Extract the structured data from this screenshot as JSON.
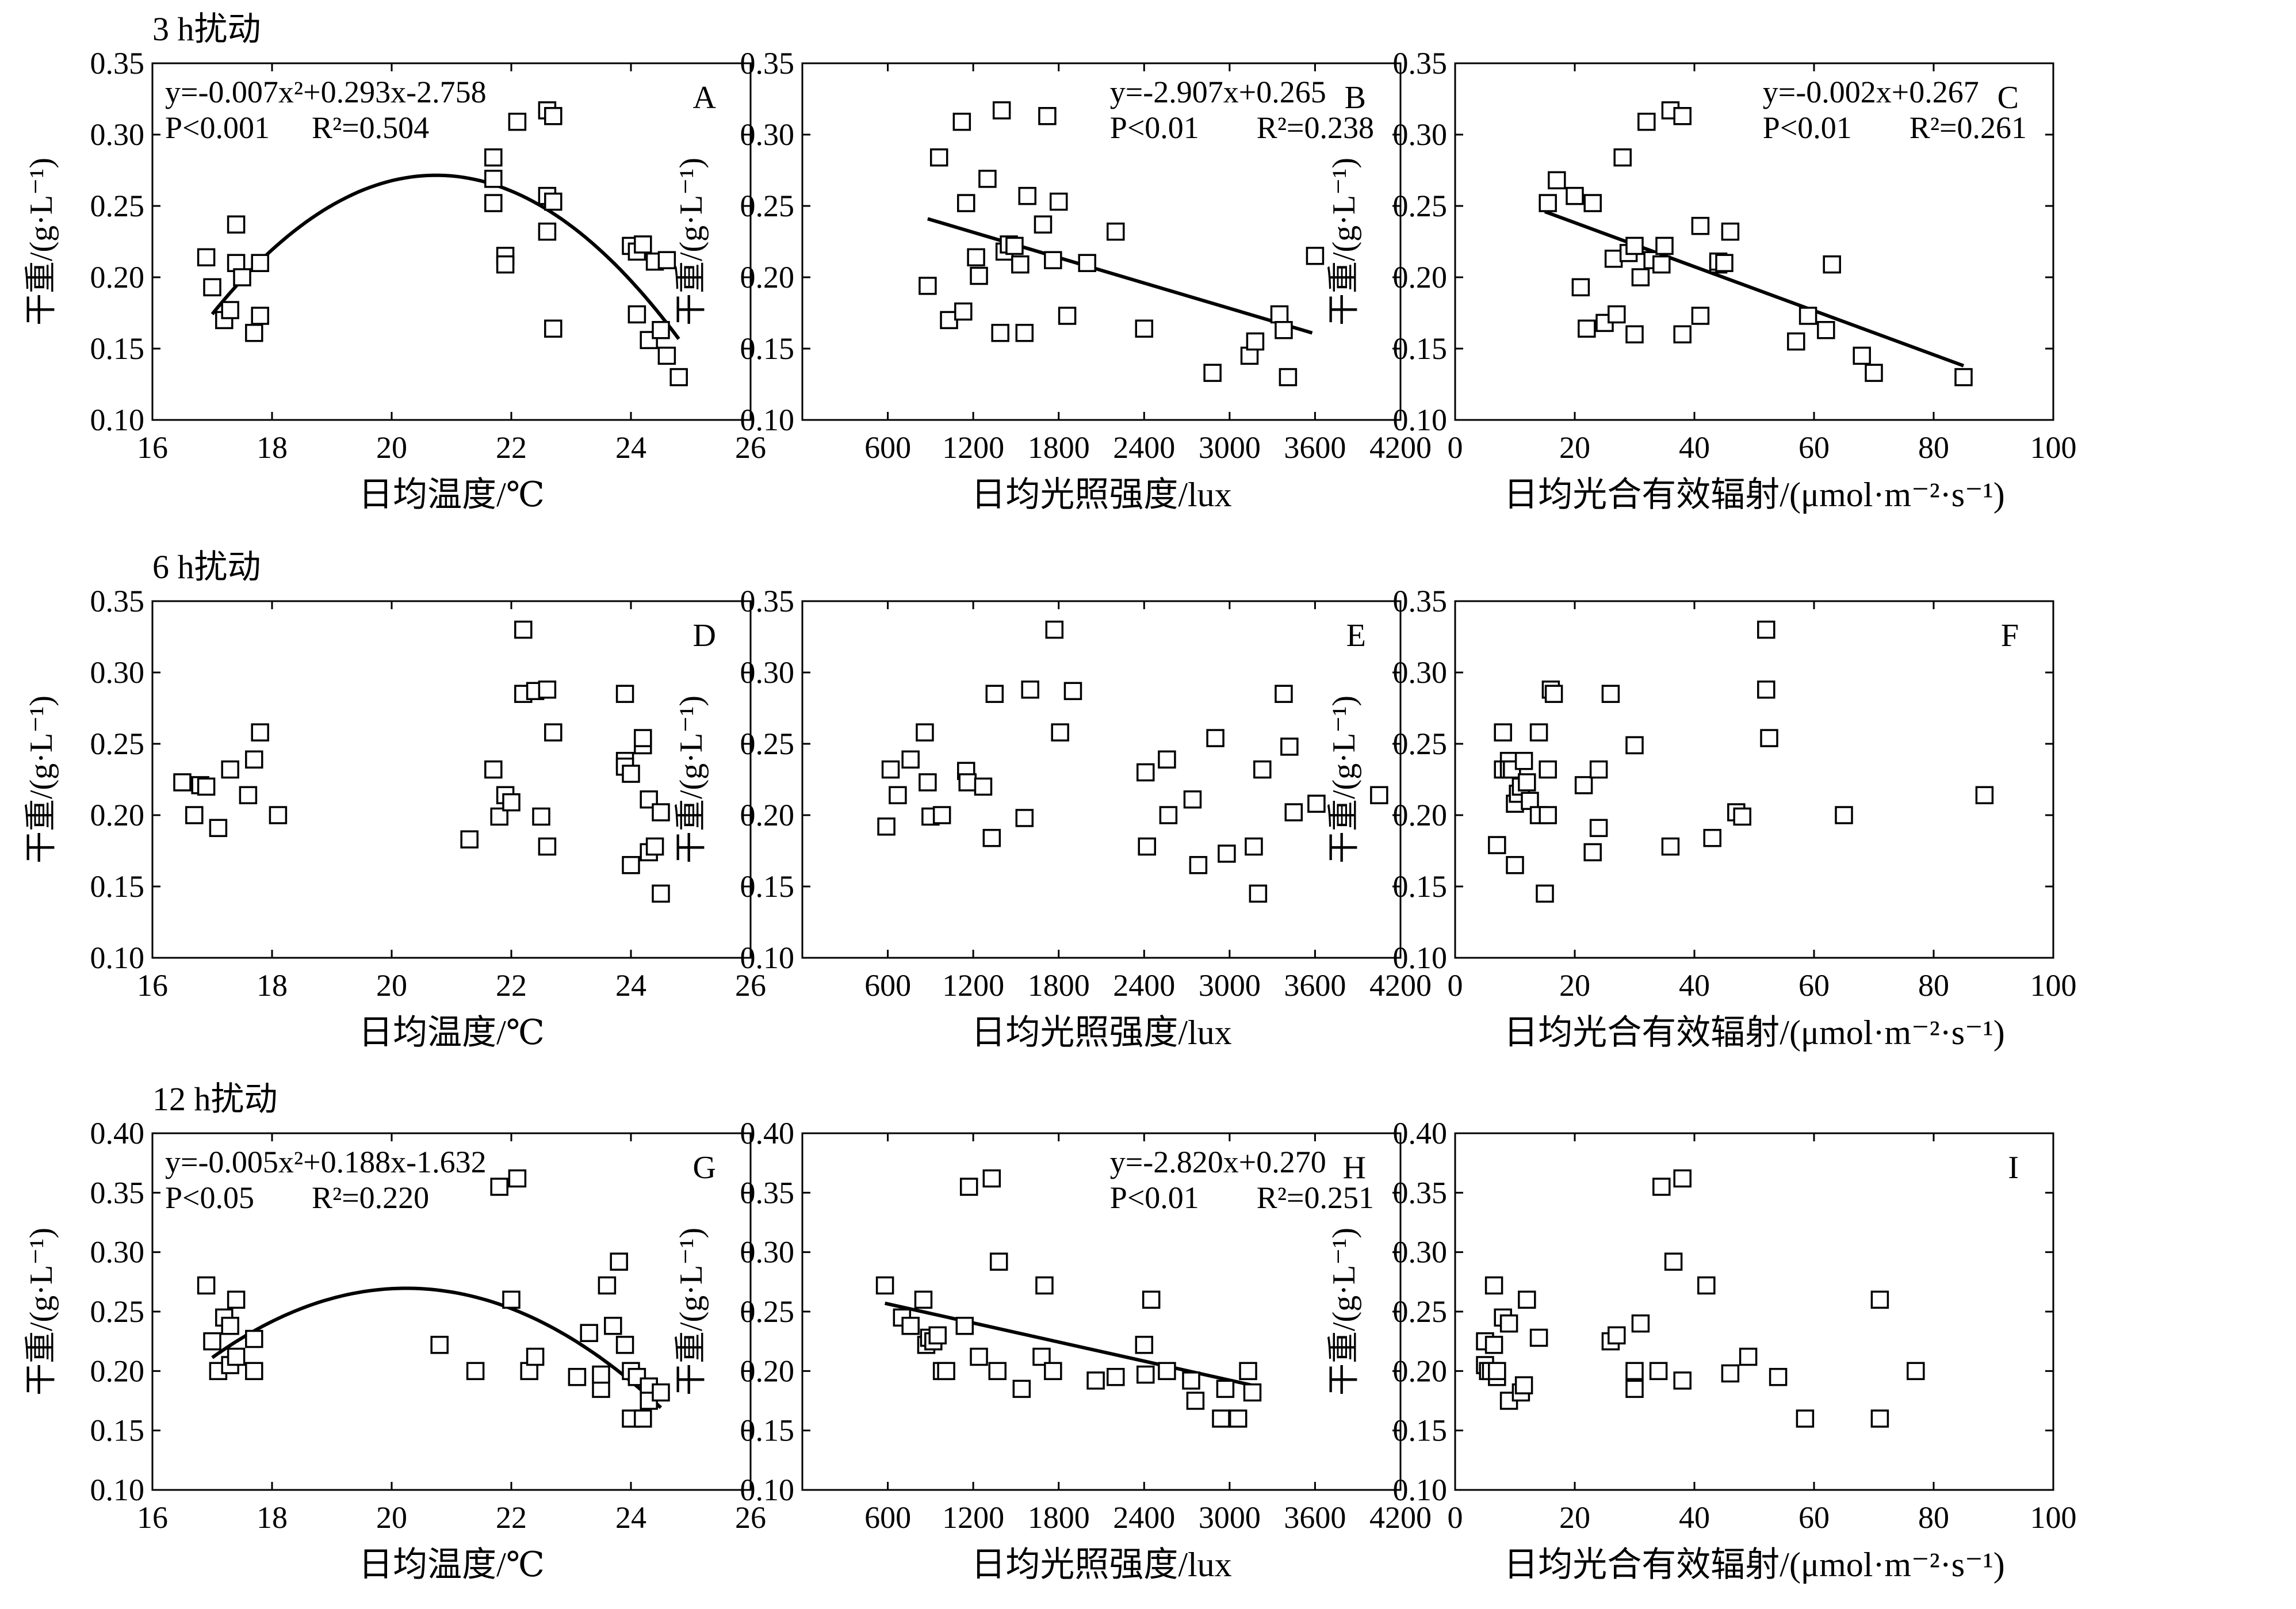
{
  "row_titles": [
    "3 h扰动",
    "6 h扰动",
    "12 h扰动"
  ],
  "chart_data": [
    {
      "id": "A",
      "type": "scatter",
      "xlabel": "日均温度/℃",
      "ylabel": "干重/(g·L⁻¹)",
      "xlim": [
        16,
        26
      ],
      "ylim": [
        0.1,
        0.35
      ],
      "xticks": [
        16,
        18,
        20,
        22,
        24,
        26
      ],
      "yticks": [
        0.1,
        0.15,
        0.2,
        0.25,
        0.3,
        0.35
      ],
      "annotation": [
        "y=-0.007x²+0.293x-2.758",
        "P<0.001",
        "R²=0.504"
      ],
      "fit": {
        "kind": "poly2",
        "coef": [
          -0.00696,
          0.2887,
          -2.7223
        ],
        "range": [
          17.0,
          24.8
        ]
      },
      "x": [
        16.9,
        17.0,
        17.2,
        17.3,
        17.4,
        17.4,
        17.5,
        17.7,
        17.8,
        17.8,
        21.7,
        21.7,
        21.7,
        21.9,
        21.9,
        22.1,
        22.6,
        22.6,
        22.6,
        22.7,
        22.7,
        22.7,
        24.0,
        24.1,
        24.1,
        24.2,
        24.3,
        24.4,
        24.5,
        24.6,
        24.6,
        24.8
      ],
      "y": [
        0.214,
        0.193,
        0.17,
        0.177,
        0.21,
        0.237,
        0.2,
        0.161,
        0.21,
        0.173,
        0.284,
        0.269,
        0.252,
        0.215,
        0.209,
        0.309,
        0.317,
        0.257,
        0.232,
        0.313,
        0.253,
        0.164,
        0.222,
        0.218,
        0.174,
        0.223,
        0.156,
        0.211,
        0.163,
        0.212,
        0.145,
        0.13
      ]
    },
    {
      "id": "B",
      "type": "scatter",
      "xlabel": "日均光照强度/lux",
      "ylabel": "干重/(g·L⁻¹)",
      "xlim": [
        0,
        4200
      ],
      "ylim": [
        0.1,
        0.35
      ],
      "xticks": [
        600,
        1200,
        1800,
        2400,
        3000,
        3600,
        4200
      ],
      "yticks": [
        0.1,
        0.15,
        0.2,
        0.25,
        0.3,
        0.35
      ],
      "annotation": [
        "y=-2.907x+0.265",
        "P<0.01",
        "R²=0.238"
      ],
      "fit": {
        "kind": "line",
        "points": [
          [
            880,
            0.241
          ],
          [
            3580,
            0.161
          ]
        ]
      },
      "x": [
        880,
        960,
        1030,
        1120,
        1130,
        1150,
        1220,
        1240,
        1300,
        1390,
        1400,
        1420,
        1450,
        1490,
        1530,
        1560,
        1580,
        1690,
        1720,
        1760,
        1800,
        1860,
        2000,
        2200,
        2400,
        2880,
        3140,
        3180,
        3350,
        3380,
        3410,
        3600
      ],
      "y": [
        0.194,
        0.284,
        0.17,
        0.309,
        0.176,
        0.252,
        0.214,
        0.201,
        0.269,
        0.161,
        0.317,
        0.218,
        0.223,
        0.222,
        0.209,
        0.161,
        0.257,
        0.237,
        0.313,
        0.212,
        0.253,
        0.173,
        0.21,
        0.232,
        0.164,
        0.133,
        0.145,
        0.155,
        0.174,
        0.163,
        0.13,
        0.215
      ]
    },
    {
      "id": "C",
      "type": "scatter",
      "xlabel": "日均光合有效辐射/(μmol·m⁻²·s⁻¹)",
      "ylabel": "干重/(g·L⁻¹)",
      "xlim": [
        0,
        100
      ],
      "ylim": [
        0.1,
        0.35
      ],
      "xticks": [
        0,
        20,
        40,
        60,
        80,
        100
      ],
      "yticks": [
        0.1,
        0.15,
        0.2,
        0.25,
        0.3,
        0.35
      ],
      "annotation": [
        "y=-0.002x+0.267",
        "P<0.01",
        "R²=0.261"
      ],
      "fit": {
        "kind": "line",
        "points": [
          [
            15,
            0.246
          ],
          [
            85,
            0.138
          ]
        ]
      },
      "x": [
        15.5,
        17,
        20,
        21,
        22,
        23,
        25,
        26.5,
        27,
        28,
        29,
        30,
        30,
        31,
        32,
        33,
        34.5,
        35,
        36,
        38,
        38,
        41,
        41,
        44,
        44,
        45,
        46,
        57,
        59,
        62,
        63,
        68,
        70,
        85
      ],
      "y": [
        0.252,
        0.268,
        0.257,
        0.193,
        0.164,
        0.252,
        0.168,
        0.213,
        0.174,
        0.284,
        0.217,
        0.222,
        0.16,
        0.2,
        0.309,
        0.212,
        0.209,
        0.222,
        0.317,
        0.16,
        0.313,
        0.236,
        0.173,
        0.209,
        0.211,
        0.21,
        0.232,
        0.155,
        0.173,
        0.163,
        0.209,
        0.145,
        0.133,
        0.13
      ]
    },
    {
      "id": "D",
      "type": "scatter",
      "xlabel": "日均温度/℃",
      "ylabel": "干重/(g·L⁻¹)",
      "xlim": [
        16,
        26
      ],
      "ylim": [
        0.1,
        0.35
      ],
      "xticks": [
        16,
        18,
        20,
        22,
        24,
        26
      ],
      "yticks": [
        0.1,
        0.15,
        0.2,
        0.25,
        0.3,
        0.35
      ],
      "x": [
        16.5,
        16.7,
        16.8,
        16.9,
        17.1,
        17.3,
        17.6,
        17.7,
        17.8,
        18.1,
        21.3,
        21.7,
        21.8,
        21.9,
        22.0,
        22.2,
        22.2,
        22.4,
        22.5,
        22.6,
        22.6,
        22.7,
        23.9,
        23.9,
        23.9,
        24.0,
        24.0,
        24.2,
        24.2,
        24.3,
        24.3,
        24.4,
        24.5,
        24.5
      ],
      "y": [
        0.223,
        0.2,
        0.221,
        0.22,
        0.191,
        0.232,
        0.214,
        0.239,
        0.258,
        0.2,
        0.183,
        0.232,
        0.199,
        0.214,
        0.209,
        0.33,
        0.285,
        0.287,
        0.199,
        0.288,
        0.178,
        0.258,
        0.285,
        0.238,
        0.234,
        0.229,
        0.165,
        0.249,
        0.254,
        0.211,
        0.174,
        0.178,
        0.202,
        0.145
      ]
    },
    {
      "id": "E",
      "type": "scatter",
      "xlabel": "日均光照强度/lux",
      "ylabel": "干重/(g·L⁻¹)",
      "xlim": [
        0,
        4200
      ],
      "ylim": [
        0.1,
        0.35
      ],
      "xticks": [
        600,
        1200,
        1800,
        2400,
        3000,
        3600,
        4200
      ],
      "yticks": [
        0.1,
        0.15,
        0.2,
        0.25,
        0.3,
        0.35
      ],
      "x": [
        590,
        620,
        670,
        760,
        860,
        880,
        900,
        980,
        1150,
        1160,
        1270,
        1330,
        1350,
        1560,
        1600,
        1770,
        1810,
        1900,
        2410,
        2420,
        2560,
        2570,
        2740,
        2780,
        2900,
        2980,
        3170,
        3200,
        3230,
        3380,
        3420,
        3450,
        3610,
        4050
      ],
      "y": [
        0.192,
        0.232,
        0.214,
        0.239,
        0.258,
        0.223,
        0.199,
        0.2,
        0.231,
        0.223,
        0.22,
        0.184,
        0.285,
        0.198,
        0.288,
        0.33,
        0.258,
        0.287,
        0.23,
        0.178,
        0.239,
        0.2,
        0.211,
        0.165,
        0.254,
        0.173,
        0.178,
        0.145,
        0.232,
        0.285,
        0.248,
        0.202,
        0.208,
        0.214
      ]
    },
    {
      "id": "F",
      "type": "scatter",
      "xlabel": "日均光合有效辐射/(μmol·m⁻²·s⁻¹)",
      "ylabel": "干重/(g·L⁻¹)",
      "xlim": [
        0,
        100
      ],
      "ylim": [
        0.1,
        0.35
      ],
      "xticks": [
        0,
        20,
        40,
        60,
        80,
        100
      ],
      "yticks": [
        0.1,
        0.15,
        0.2,
        0.25,
        0.3,
        0.35
      ],
      "x": [
        7,
        8,
        8,
        9,
        9,
        9.5,
        10,
        10,
        10.5,
        11,
        11.5,
        12,
        12.5,
        14,
        14,
        15,
        15.5,
        15.5,
        16,
        16.5,
        21.5,
        23,
        24,
        24,
        26,
        30,
        36,
        43,
        47,
        48,
        52,
        52,
        52.5,
        65,
        88.5
      ],
      "y": [
        0.179,
        0.258,
        0.232,
        0.238,
        0.232,
        0.232,
        0.165,
        0.208,
        0.215,
        0.22,
        0.238,
        0.223,
        0.21,
        0.2,
        0.258,
        0.145,
        0.2,
        0.232,
        0.288,
        0.285,
        0.221,
        0.174,
        0.191,
        0.232,
        0.285,
        0.249,
        0.178,
        0.184,
        0.202,
        0.199,
        0.33,
        0.288,
        0.254,
        0.2,
        0.214
      ]
    },
    {
      "id": "G",
      "type": "scatter",
      "xlabel": "日均温度/℃",
      "ylabel": "干重/(g·L⁻¹)",
      "xlim": [
        16,
        26
      ],
      "ylim": [
        0.1,
        0.4
      ],
      "xticks": [
        16,
        18,
        20,
        22,
        24,
        26
      ],
      "yticks": [
        0.1,
        0.15,
        0.2,
        0.25,
        0.3,
        0.35,
        0.4
      ],
      "annotation": [
        "y=-0.005x²+0.188x-1.632",
        "P<0.05",
        "R²=0.220"
      ],
      "fit": {
        "kind": "poly2",
        "coef": [
          -0.005545,
          0.2245,
          -2.0027
        ],
        "range": [
          17.0,
          24.5
        ]
      },
      "x": [
        16.9,
        17.0,
        17.1,
        17.2,
        17.3,
        17.3,
        17.4,
        17.4,
        17.7,
        17.7,
        20.8,
        21.4,
        21.8,
        22.0,
        22.1,
        22.3,
        22.4,
        23.1,
        23.3,
        23.5,
        23.5,
        23.6,
        23.7,
        23.8,
        23.9,
        24.0,
        24.0,
        24.1,
        24.2,
        24.3,
        24.3,
        24.5
      ],
      "y": [
        0.272,
        0.225,
        0.2,
        0.245,
        0.205,
        0.238,
        0.212,
        0.26,
        0.227,
        0.2,
        0.222,
        0.2,
        0.355,
        0.26,
        0.362,
        0.2,
        0.212,
        0.195,
        0.232,
        0.185,
        0.197,
        0.272,
        0.238,
        0.292,
        0.222,
        0.2,
        0.16,
        0.195,
        0.16,
        0.187,
        0.175,
        0.182
      ]
    },
    {
      "id": "H",
      "type": "scatter",
      "xlabel": "日均光照强度/lux",
      "ylabel": "干重/(g·L⁻¹)",
      "xlim": [
        0,
        4200
      ],
      "ylim": [
        0.1,
        0.4
      ],
      "xticks": [
        600,
        1200,
        1800,
        2400,
        3000,
        3600,
        4200
      ],
      "yticks": [
        0.1,
        0.15,
        0.2,
        0.25,
        0.3,
        0.35,
        0.4
      ],
      "annotation": [
        "y=-2.820x+0.270",
        "P<0.01",
        "R²=0.251"
      ],
      "fit": {
        "kind": "line",
        "points": [
          [
            580,
            0.257
          ],
          [
            3160,
            0.188
          ]
        ]
      },
      "x": [
        580,
        700,
        760,
        850,
        870,
        890,
        920,
        950,
        980,
        1010,
        1140,
        1170,
        1240,
        1330,
        1370,
        1380,
        1540,
        1680,
        1700,
        1760,
        2060,
        2200,
        2400,
        2410,
        2450,
        2560,
        2730,
        2760,
        2940,
        2970,
        3060,
        3130,
        3160
      ],
      "y": [
        0.272,
        0.245,
        0.238,
        0.26,
        0.222,
        0.228,
        0.225,
        0.23,
        0.2,
        0.2,
        0.238,
        0.355,
        0.212,
        0.362,
        0.2,
        0.292,
        0.185,
        0.212,
        0.272,
        0.2,
        0.192,
        0.195,
        0.222,
        0.197,
        0.26,
        0.2,
        0.192,
        0.175,
        0.16,
        0.185,
        0.16,
        0.2,
        0.182
      ]
    },
    {
      "id": "I",
      "type": "scatter",
      "xlabel": "日均光合有效辐射/(μmol·m⁻²·s⁻¹)",
      "ylabel": "干重/(g·L⁻¹)",
      "xlim": [
        0,
        100
      ],
      "ylim": [
        0.1,
        0.4
      ],
      "xticks": [
        0,
        20,
        40,
        60,
        80,
        100
      ],
      "yticks": [
        0.1,
        0.15,
        0.2,
        0.25,
        0.3,
        0.35,
        0.4
      ],
      "x": [
        5,
        5,
        5.5,
        6,
        6.5,
        6.5,
        7,
        7,
        8,
        9,
        9,
        11,
        11.5,
        12,
        14,
        26,
        27,
        30,
        30,
        31,
        34,
        34.5,
        36.5,
        38,
        38,
        42,
        46,
        49,
        54,
        58.5,
        71,
        71,
        77
      ],
      "y": [
        0.225,
        0.205,
        0.2,
        0.2,
        0.222,
        0.272,
        0.195,
        0.2,
        0.245,
        0.175,
        0.24,
        0.182,
        0.188,
        0.26,
        0.228,
        0.225,
        0.23,
        0.2,
        0.185,
        0.24,
        0.2,
        0.355,
        0.292,
        0.192,
        0.362,
        0.272,
        0.198,
        0.212,
        0.195,
        0.16,
        0.26,
        0.16,
        0.2
      ]
    }
  ]
}
